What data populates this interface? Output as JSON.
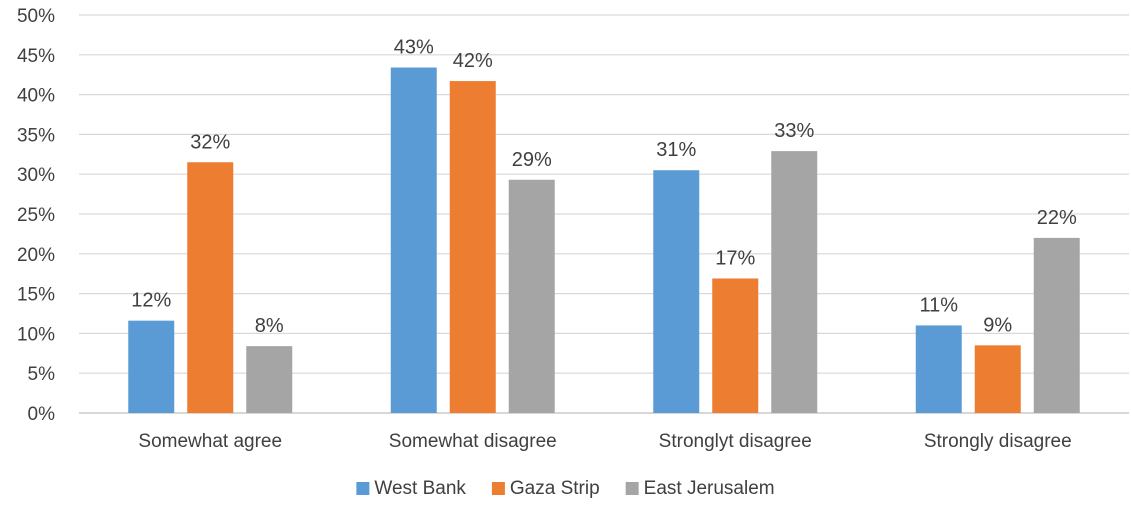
{
  "chart_data": {
    "type": "bar",
    "categories": [
      "Somewhat agree",
      "Somewhat disagree",
      "Stronglyt disagree",
      "Strongly disagree"
    ],
    "series": [
      {
        "name": "West Bank",
        "color": "#5B9BD5",
        "values": [
          11.6,
          43.4,
          30.5,
          11.0
        ],
        "labels": [
          "12%",
          "43%",
          "31%",
          "11%"
        ]
      },
      {
        "name": "Gaza Strip",
        "color": "#ED7D31",
        "values": [
          31.5,
          41.7,
          16.9,
          8.5
        ],
        "labels": [
          "32%",
          "42%",
          "17%",
          "9%"
        ]
      },
      {
        "name": "East Jerusalem",
        "color": "#A5A5A5",
        "values": [
          8.4,
          29.3,
          32.9,
          22.0
        ],
        "labels": [
          "8%",
          "29%",
          "33%",
          "22%"
        ]
      }
    ],
    "ylim": [
      0,
      50
    ],
    "yticks": [
      "0%",
      "5%",
      "10%",
      "15%",
      "20%",
      "25%",
      "30%",
      "35%",
      "40%",
      "45%",
      "50%"
    ],
    "grid": true,
    "legend_position": "bottom",
    "title": "",
    "xlabel": "",
    "ylabel": ""
  }
}
